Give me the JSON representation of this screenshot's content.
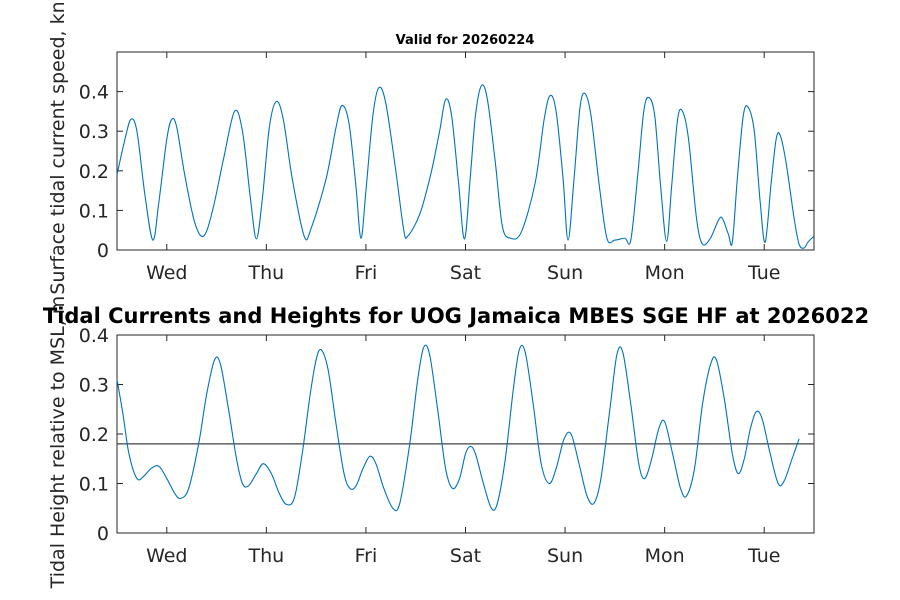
{
  "chart_data": [
    {
      "type": "line",
      "title": "Valid for 20260224",
      "ylabel": "Surface tidal current speed, kn",
      "xlabel": "",
      "x_ticklabels": [
        "Wed",
        "Thu",
        "Fri",
        "Sat",
        "Sun",
        "Mon",
        "Tue"
      ],
      "y_ticks": [
        "0",
        "0.1",
        "0.2",
        "0.3",
        "0.4"
      ],
      "xlim": [
        0,
        7.0
      ],
      "ylim": [
        0,
        0.5
      ],
      "grid": false,
      "color": "#0072bd",
      "series": [
        {
          "name": "",
          "points": [
            [
              0.0,
              0.19
            ],
            [
              0.08,
              0.28
            ],
            [
              0.14,
              0.33
            ],
            [
              0.2,
              0.3
            ],
            [
              0.28,
              0.14
            ],
            [
              0.36,
              0.025
            ],
            [
              0.42,
              0.12
            ],
            [
              0.5,
              0.28
            ],
            [
              0.55,
              0.33
            ],
            [
              0.6,
              0.31
            ],
            [
              0.68,
              0.19
            ],
            [
              0.78,
              0.07
            ],
            [
              0.87,
              0.035
            ],
            [
              0.96,
              0.1
            ],
            [
              1.07,
              0.23
            ],
            [
              1.18,
              0.35
            ],
            [
              1.26,
              0.3
            ],
            [
              1.34,
              0.13
            ],
            [
              1.4,
              0.028
            ],
            [
              1.46,
              0.13
            ],
            [
              1.53,
              0.31
            ],
            [
              1.6,
              0.375
            ],
            [
              1.67,
              0.33
            ],
            [
              1.76,
              0.18
            ],
            [
              1.88,
              0.035
            ],
            [
              1.95,
              0.055
            ],
            [
              2.1,
              0.18
            ],
            [
              2.2,
              0.31
            ],
            [
              2.26,
              0.365
            ],
            [
              2.33,
              0.32
            ],
            [
              2.4,
              0.16
            ],
            [
              2.45,
              0.03
            ],
            [
              2.5,
              0.15
            ],
            [
              2.57,
              0.34
            ],
            [
              2.63,
              0.41
            ],
            [
              2.7,
              0.37
            ],
            [
              2.8,
              0.2
            ],
            [
              2.88,
              0.05
            ],
            [
              2.92,
              0.035
            ],
            [
              3.04,
              0.09
            ],
            [
              3.15,
              0.19
            ],
            [
              3.24,
              0.3
            ],
            [
              3.3,
              0.38
            ],
            [
              3.36,
              0.34
            ],
            [
              3.43,
              0.17
            ],
            [
              3.49,
              0.028
            ],
            [
              3.55,
              0.19
            ],
            [
              3.6,
              0.34
            ],
            [
              3.66,
              0.415
            ],
            [
              3.72,
              0.38
            ],
            [
              3.8,
              0.22
            ],
            [
              3.87,
              0.06
            ],
            [
              3.95,
              0.03
            ],
            [
              4.06,
              0.045
            ],
            [
              4.2,
              0.17
            ],
            [
              4.29,
              0.33
            ],
            [
              4.35,
              0.39
            ],
            [
              4.41,
              0.35
            ],
            [
              4.48,
              0.18
            ],
            [
              4.53,
              0.025
            ],
            [
              4.59,
              0.18
            ],
            [
              4.65,
              0.36
            ],
            [
              4.7,
              0.395
            ],
            [
              4.76,
              0.34
            ],
            [
              4.84,
              0.17
            ],
            [
              4.92,
              0.03
            ],
            [
              5.0,
              0.025
            ],
            [
              5.1,
              0.03
            ],
            [
              5.16,
              0.025
            ],
            [
              5.23,
              0.19
            ],
            [
              5.29,
              0.35
            ],
            [
              5.34,
              0.385
            ],
            [
              5.4,
              0.34
            ],
            [
              5.46,
              0.16
            ],
            [
              5.52,
              0.022
            ],
            [
              5.57,
              0.16
            ],
            [
              5.63,
              0.33
            ],
            [
              5.68,
              0.35
            ],
            [
              5.74,
              0.28
            ],
            [
              5.82,
              0.08
            ],
            [
              5.88,
              0.015
            ],
            [
              5.96,
              0.03
            ],
            [
              6.04,
              0.075
            ],
            [
              6.08,
              0.08
            ],
            [
              6.14,
              0.04
            ],
            [
              6.18,
              0.02
            ],
            [
              6.23,
              0.18
            ],
            [
              6.29,
              0.34
            ],
            [
              6.34,
              0.36
            ],
            [
              6.4,
              0.3
            ],
            [
              6.46,
              0.12
            ],
            [
              6.51,
              0.02
            ],
            [
              6.57,
              0.17
            ],
            [
              6.62,
              0.28
            ],
            [
              6.66,
              0.29
            ],
            [
              6.72,
              0.22
            ],
            [
              6.8,
              0.08
            ],
            [
              6.85,
              0.015
            ],
            [
              6.9,
              0.005
            ],
            [
              6.94,
              0.02
            ],
            [
              7.0,
              0.035
            ]
          ]
        }
      ]
    },
    {
      "type": "line",
      "title": "Tidal Currents and Heights for UOG Jamaica MBES SGE HF at 2026022",
      "ylabel": "Tidal Height relative to MSL, m",
      "xlabel": "",
      "x_ticklabels": [
        "Wed",
        "Thu",
        "Fri",
        "Sat",
        "Sun",
        "Mon",
        "Tue"
      ],
      "y_ticks": [
        "0",
        "0.1",
        "0.2",
        "0.3",
        "0.4"
      ],
      "xlim": [
        0,
        7.0
      ],
      "ylim": [
        0,
        0.4
      ],
      "grid": false,
      "reference_line": 0.18,
      "reference_color": "#404040",
      "color": "#0072bd",
      "series": [
        {
          "name": "",
          "points": [
            [
              0.0,
              0.31
            ],
            [
              0.06,
              0.24
            ],
            [
              0.12,
              0.16
            ],
            [
              0.2,
              0.11
            ],
            [
              0.27,
              0.115
            ],
            [
              0.34,
              0.13
            ],
            [
              0.42,
              0.135
            ],
            [
              0.5,
              0.11
            ],
            [
              0.58,
              0.08
            ],
            [
              0.64,
              0.07
            ],
            [
              0.72,
              0.09
            ],
            [
              0.82,
              0.18
            ],
            [
              0.9,
              0.28
            ],
            [
              0.98,
              0.35
            ],
            [
              1.04,
              0.34
            ],
            [
              1.12,
              0.25
            ],
            [
              1.2,
              0.15
            ],
            [
              1.26,
              0.1
            ],
            [
              1.32,
              0.095
            ],
            [
              1.4,
              0.12
            ],
            [
              1.47,
              0.14
            ],
            [
              1.55,
              0.12
            ],
            [
              1.63,
              0.08
            ],
            [
              1.7,
              0.058
            ],
            [
              1.78,
              0.07
            ],
            [
              1.86,
              0.16
            ],
            [
              1.94,
              0.28
            ],
            [
              2.0,
              0.35
            ],
            [
              2.05,
              0.37
            ],
            [
              2.12,
              0.33
            ],
            [
              2.2,
              0.22
            ],
            [
              2.28,
              0.12
            ],
            [
              2.34,
              0.09
            ],
            [
              2.4,
              0.095
            ],
            [
              2.47,
              0.13
            ],
            [
              2.54,
              0.155
            ],
            [
              2.6,
              0.14
            ],
            [
              2.68,
              0.09
            ],
            [
              2.77,
              0.05
            ],
            [
              2.84,
              0.06
            ],
            [
              2.94,
              0.18
            ],
            [
              3.02,
              0.31
            ],
            [
              3.08,
              0.375
            ],
            [
              3.14,
              0.36
            ],
            [
              3.22,
              0.25
            ],
            [
              3.3,
              0.13
            ],
            [
              3.37,
              0.09
            ],
            [
              3.44,
              0.11
            ],
            [
              3.5,
              0.16
            ],
            [
              3.55,
              0.175
            ],
            [
              3.6,
              0.16
            ],
            [
              3.68,
              0.1
            ],
            [
              3.76,
              0.05
            ],
            [
              3.82,
              0.06
            ],
            [
              3.9,
              0.15
            ],
            [
              3.98,
              0.29
            ],
            [
              4.04,
              0.37
            ],
            [
              4.1,
              0.365
            ],
            [
              4.18,
              0.26
            ],
            [
              4.26,
              0.14
            ],
            [
              4.34,
              0.1
            ],
            [
              4.41,
              0.13
            ],
            [
              4.49,
              0.19
            ],
            [
              4.56,
              0.2
            ],
            [
              4.64,
              0.14
            ],
            [
              4.72,
              0.075
            ],
            [
              4.79,
              0.06
            ],
            [
              4.86,
              0.11
            ],
            [
              4.95,
              0.25
            ],
            [
              5.02,
              0.36
            ],
            [
              5.08,
              0.365
            ],
            [
              5.16,
              0.26
            ],
            [
              5.24,
              0.14
            ],
            [
              5.3,
              0.11
            ],
            [
              5.37,
              0.15
            ],
            [
              5.44,
              0.21
            ],
            [
              5.5,
              0.225
            ],
            [
              5.58,
              0.16
            ],
            [
              5.66,
              0.09
            ],
            [
              5.72,
              0.075
            ],
            [
              5.8,
              0.13
            ],
            [
              5.88,
              0.26
            ],
            [
              5.96,
              0.34
            ],
            [
              6.02,
              0.35
            ],
            [
              6.1,
              0.27
            ],
            [
              6.18,
              0.16
            ],
            [
              6.24,
              0.12
            ],
            [
              6.3,
              0.15
            ],
            [
              6.36,
              0.21
            ],
            [
              6.42,
              0.245
            ],
            [
              6.48,
              0.23
            ],
            [
              6.56,
              0.16
            ],
            [
              6.64,
              0.1
            ],
            [
              6.7,
              0.105
            ],
            [
              6.78,
              0.15
            ],
            [
              6.85,
              0.19
            ]
          ]
        }
      ]
    }
  ]
}
